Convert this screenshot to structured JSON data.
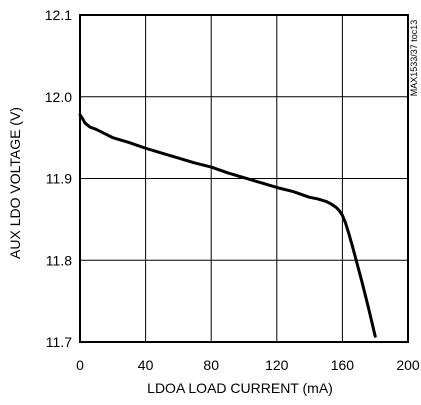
{
  "chart_data": {
    "type": "line",
    "title": "",
    "xlabel": "LDOA LOAD CURRENT (mA)",
    "ylabel": "AUX LDO VOLTAGE (V)",
    "xlim": [
      0,
      200
    ],
    "ylim": [
      11.7,
      12.1
    ],
    "x_ticks": [
      0,
      40,
      80,
      120,
      160,
      200
    ],
    "y_ticks": [
      11.7,
      11.8,
      11.9,
      12.0,
      12.1
    ],
    "x_tick_labels": [
      "0",
      "40",
      "80",
      "120",
      "160",
      "200"
    ],
    "y_tick_labels": [
      "11.7",
      "11.8",
      "11.9",
      "12.0",
      "12.1"
    ],
    "grid": true,
    "legend": "none",
    "line_color": "#000000",
    "annotation": "MAX1533/37 toc13",
    "series": [
      {
        "x": [
          0,
          1,
          3,
          6,
          10,
          15,
          20,
          30,
          40,
          50,
          60,
          70,
          80,
          90,
          100,
          110,
          120,
          130,
          140,
          145,
          150,
          153,
          156,
          158,
          160,
          162,
          164,
          166,
          168,
          170,
          172,
          174,
          176,
          178,
          180
        ],
        "y": [
          11.978,
          11.975,
          11.968,
          11.963,
          11.96,
          11.955,
          11.95,
          11.944,
          11.937,
          11.931,
          11.925,
          11.919,
          11.914,
          11.907,
          11.901,
          11.895,
          11.889,
          11.884,
          11.877,
          11.875,
          11.872,
          11.869,
          11.865,
          11.861,
          11.855,
          11.845,
          11.832,
          11.818,
          11.803,
          11.788,
          11.773,
          11.757,
          11.741,
          11.724,
          11.707
        ]
      }
    ]
  }
}
